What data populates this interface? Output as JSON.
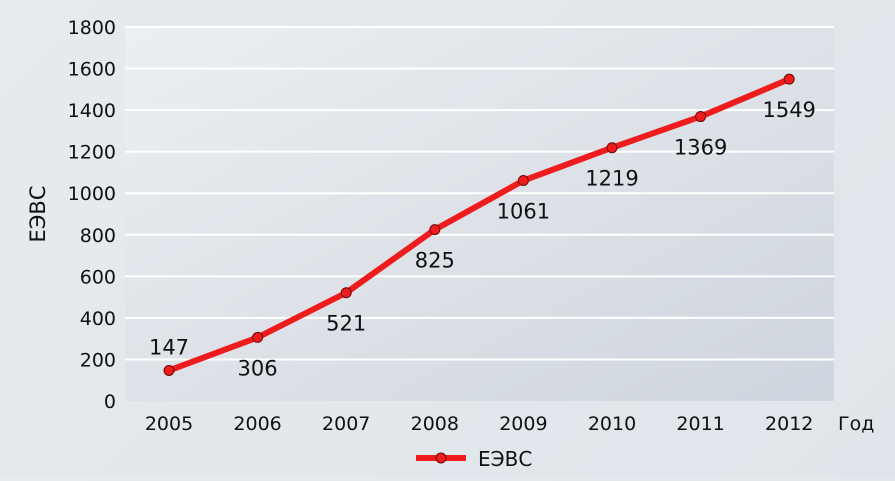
{
  "chart_data": {
    "type": "line",
    "title": "",
    "xlabel": "Год",
    "ylabel": "ЕЭВС",
    "categories": [
      "2005",
      "2006",
      "2007",
      "2008",
      "2009",
      "2010",
      "2011",
      "2012"
    ],
    "series": [
      {
        "name": "ЕЭВС",
        "values": [
          147,
          306,
          521,
          825,
          1061,
          1219,
          1369,
          1549
        ],
        "color": "#ee1c1c"
      }
    ],
    "ylim": [
      0,
      1800
    ],
    "yticks": [
      0,
      200,
      400,
      600,
      800,
      1000,
      1200,
      1400,
      1600,
      1800
    ],
    "grid": true,
    "legend": "bottom",
    "data_labels": true
  }
}
